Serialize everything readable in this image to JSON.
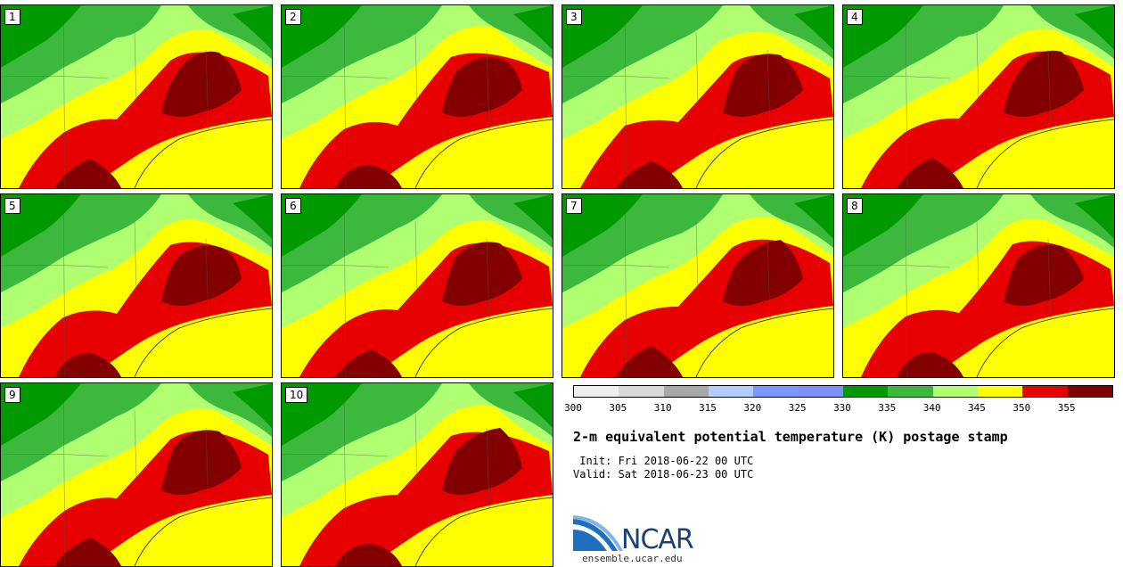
{
  "panels": [
    {
      "label": "1"
    },
    {
      "label": "2"
    },
    {
      "label": "3"
    },
    {
      "label": "4"
    },
    {
      "label": "5"
    },
    {
      "label": "6"
    },
    {
      "label": "7"
    },
    {
      "label": "8"
    },
    {
      "label": "9"
    },
    {
      "label": "10"
    }
  ],
  "colorbar": {
    "colors": [
      "#efefef",
      "#d9d9d9",
      "#a9a9a9",
      "#b4ccff",
      "#7c96ff",
      "#7c8fff",
      "#009a00",
      "#3cb83c",
      "#b0ff70",
      "#ffff00",
      "#e60000",
      "#820000"
    ],
    "ticks": [
      "300",
      "305",
      "310",
      "315",
      "320",
      "325",
      "330",
      "335",
      "340",
      "345",
      "350",
      "355"
    ]
  },
  "title": "2-m equivalent potential temperature (K) postage stamp",
  "init": " Init: Fri 2018-06-22 00 UTC",
  "valid": "Valid: Sat 2018-06-23 00 UTC",
  "logo_text": "NCAR",
  "url": "ensemble.ucar.edu"
}
